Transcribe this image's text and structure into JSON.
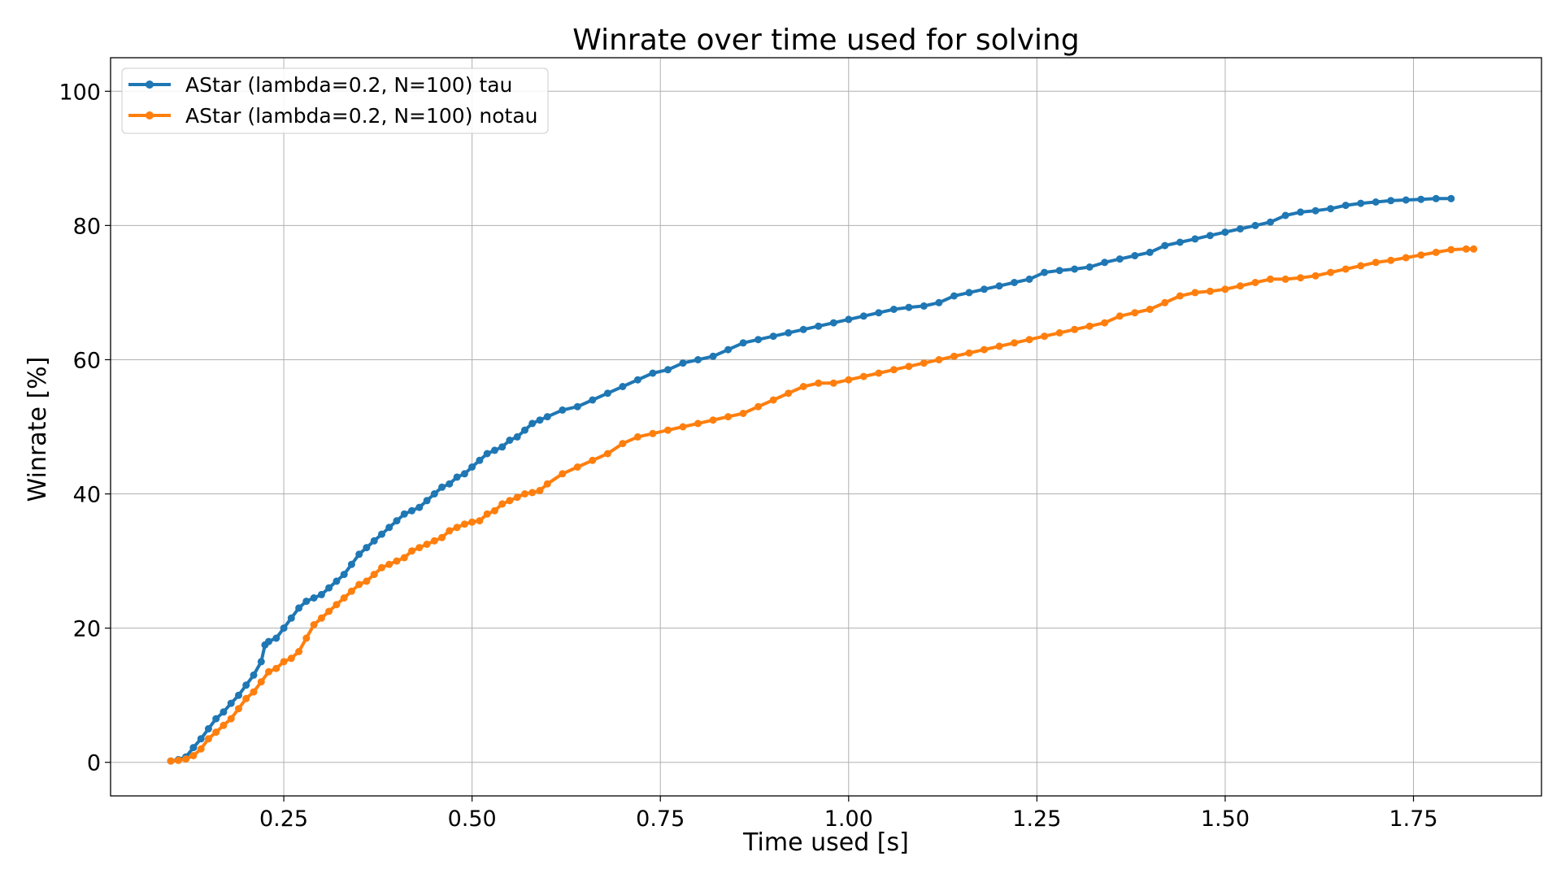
{
  "chart_data": {
    "type": "line",
    "title": "Winrate over time used for solving",
    "xlabel": "Time used [s]",
    "ylabel": "Winrate [%]",
    "xlim": [
      0.02,
      1.92
    ],
    "ylim": [
      -5,
      105
    ],
    "xticks": [
      0.25,
      0.5,
      0.75,
      1.0,
      1.25,
      1.5,
      1.75
    ],
    "xtick_labels": [
      "0.25",
      "0.50",
      "0.75",
      "1.00",
      "1.25",
      "1.50",
      "1.75"
    ],
    "yticks": [
      0,
      20,
      40,
      60,
      80,
      100
    ],
    "ytick_labels": [
      "0",
      "20",
      "40",
      "60",
      "80",
      "100"
    ],
    "grid": true,
    "legend_position": "top-left",
    "series": [
      {
        "name": "AStar (lambda=0.2, N=100) tau",
        "color": "#1f77b4",
        "x": [
          0.1,
          0.11,
          0.12,
          0.13,
          0.14,
          0.15,
          0.16,
          0.17,
          0.18,
          0.19,
          0.2,
          0.21,
          0.22,
          0.225,
          0.23,
          0.24,
          0.25,
          0.26,
          0.27,
          0.28,
          0.29,
          0.3,
          0.31,
          0.32,
          0.33,
          0.34,
          0.35,
          0.36,
          0.37,
          0.38,
          0.39,
          0.4,
          0.41,
          0.42,
          0.43,
          0.44,
          0.45,
          0.46,
          0.47,
          0.48,
          0.49,
          0.5,
          0.51,
          0.52,
          0.53,
          0.54,
          0.55,
          0.56,
          0.57,
          0.58,
          0.59,
          0.6,
          0.62,
          0.64,
          0.66,
          0.68,
          0.7,
          0.72,
          0.74,
          0.76,
          0.78,
          0.8,
          0.82,
          0.84,
          0.86,
          0.88,
          0.9,
          0.92,
          0.94,
          0.96,
          0.98,
          1.0,
          1.02,
          1.04,
          1.06,
          1.08,
          1.1,
          1.12,
          1.14,
          1.16,
          1.18,
          1.2,
          1.22,
          1.24,
          1.26,
          1.28,
          1.3,
          1.32,
          1.34,
          1.36,
          1.38,
          1.4,
          1.42,
          1.44,
          1.46,
          1.48,
          1.5,
          1.52,
          1.54,
          1.56,
          1.58,
          1.6,
          1.62,
          1.64,
          1.66,
          1.68,
          1.7,
          1.72,
          1.74,
          1.76,
          1.78,
          1.8
        ],
        "y": [
          0.2,
          0.4,
          0.8,
          2.2,
          3.5,
          5.0,
          6.5,
          7.5,
          8.8,
          10.0,
          11.5,
          13.0,
          15.0,
          17.5,
          18.0,
          18.5,
          20.0,
          21.5,
          23.0,
          24.0,
          24.5,
          25.0,
          26.0,
          27.0,
          28.0,
          29.5,
          31.0,
          32.0,
          33.0,
          34.0,
          35.0,
          36.0,
          37.0,
          37.5,
          38.0,
          39.0,
          40.0,
          41.0,
          41.5,
          42.5,
          43.0,
          44.0,
          45.0,
          46.0,
          46.5,
          47.0,
          48.0,
          48.5,
          49.5,
          50.5,
          51.0,
          51.5,
          52.5,
          53.0,
          54.0,
          55.0,
          56.0,
          57.0,
          58.0,
          58.5,
          59.5,
          60.0,
          60.5,
          61.5,
          62.5,
          63.0,
          63.5,
          64.0,
          64.5,
          65.0,
          65.5,
          66.0,
          66.5,
          67.0,
          67.5,
          67.8,
          68.0,
          68.5,
          69.5,
          70.0,
          70.5,
          71.0,
          71.5,
          72.0,
          73.0,
          73.3,
          73.5,
          73.8,
          74.5,
          75.0,
          75.5,
          76.0,
          77.0,
          77.5,
          78.0,
          78.5,
          79.0,
          79.5,
          80.0,
          80.5,
          81.5,
          82.0,
          82.2,
          82.5,
          83.0,
          83.3,
          83.5,
          83.7,
          83.8,
          83.9,
          84.0,
          84.0
        ]
      },
      {
        "name": "AStar (lambda=0.2, N=100) notau",
        "color": "#ff7f0e",
        "x": [
          0.1,
          0.11,
          0.12,
          0.13,
          0.14,
          0.15,
          0.16,
          0.17,
          0.18,
          0.19,
          0.2,
          0.21,
          0.22,
          0.23,
          0.24,
          0.25,
          0.26,
          0.27,
          0.28,
          0.29,
          0.3,
          0.31,
          0.32,
          0.33,
          0.34,
          0.35,
          0.36,
          0.37,
          0.38,
          0.39,
          0.4,
          0.41,
          0.42,
          0.43,
          0.44,
          0.45,
          0.46,
          0.47,
          0.48,
          0.49,
          0.5,
          0.51,
          0.52,
          0.53,
          0.54,
          0.55,
          0.56,
          0.57,
          0.58,
          0.59,
          0.6,
          0.62,
          0.64,
          0.66,
          0.68,
          0.7,
          0.72,
          0.74,
          0.76,
          0.78,
          0.8,
          0.82,
          0.84,
          0.86,
          0.88,
          0.9,
          0.92,
          0.94,
          0.96,
          0.98,
          1.0,
          1.02,
          1.04,
          1.06,
          1.08,
          1.1,
          1.12,
          1.14,
          1.16,
          1.18,
          1.2,
          1.22,
          1.24,
          1.26,
          1.28,
          1.3,
          1.32,
          1.34,
          1.36,
          1.38,
          1.4,
          1.42,
          1.44,
          1.46,
          1.48,
          1.5,
          1.52,
          1.54,
          1.56,
          1.58,
          1.6,
          1.62,
          1.64,
          1.66,
          1.68,
          1.7,
          1.72,
          1.74,
          1.76,
          1.78,
          1.8,
          1.82,
          1.83
        ],
        "y": [
          0.2,
          0.3,
          0.5,
          1.0,
          2.0,
          3.5,
          4.5,
          5.5,
          6.5,
          8.0,
          9.5,
          10.5,
          12.0,
          13.5,
          14.0,
          15.0,
          15.5,
          16.5,
          18.5,
          20.5,
          21.5,
          22.5,
          23.5,
          24.5,
          25.5,
          26.5,
          27.0,
          28.0,
          29.0,
          29.5,
          30.0,
          30.5,
          31.5,
          32.0,
          32.5,
          33.0,
          33.5,
          34.5,
          35.0,
          35.5,
          35.8,
          36.0,
          37.0,
          37.5,
          38.5,
          39.0,
          39.5,
          40.0,
          40.2,
          40.5,
          41.5,
          43.0,
          44.0,
          45.0,
          46.0,
          47.5,
          48.5,
          49.0,
          49.5,
          50.0,
          50.5,
          51.0,
          51.5,
          52.0,
          53.0,
          54.0,
          55.0,
          56.0,
          56.5,
          56.5,
          57.0,
          57.5,
          58.0,
          58.5,
          59.0,
          59.5,
          60.0,
          60.5,
          61.0,
          61.5,
          62.0,
          62.5,
          63.0,
          63.5,
          64.0,
          64.5,
          65.0,
          65.5,
          66.5,
          67.0,
          67.5,
          68.5,
          69.5,
          70.0,
          70.2,
          70.5,
          71.0,
          71.5,
          72.0,
          72.0,
          72.2,
          72.5,
          73.0,
          73.5,
          74.0,
          74.5,
          74.8,
          75.2,
          75.6,
          76.0,
          76.4,
          76.5,
          76.5
        ]
      }
    ]
  }
}
